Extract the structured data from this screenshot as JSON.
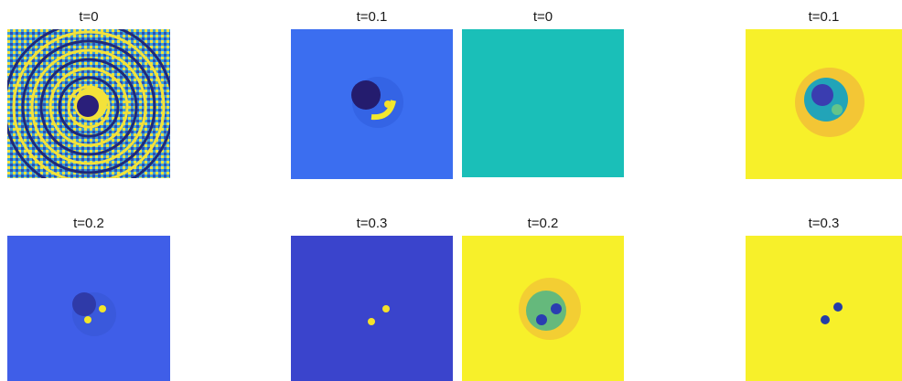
{
  "panels": [
    {
      "title": "t=0",
      "render": "rings"
    },
    {
      "title": "t=0.1",
      "render": "blue-dark-core"
    },
    {
      "title": "t=0",
      "render": "flat-teal"
    },
    {
      "title": "t=0.1",
      "render": "yellow-blob"
    },
    {
      "title": "t=0.2",
      "render": "blue-dim-core"
    },
    {
      "title": "t=0.3",
      "render": "deep-blue-pair"
    },
    {
      "title": "t=0.2",
      "render": "yellow-green-pair"
    },
    {
      "title": "t=0.3",
      "render": "yellow-blue-pair"
    }
  ],
  "colors": {
    "teal": "#1abfb8",
    "blue": "#3b6ef0",
    "deep_blue": "#3a44cc",
    "yellow": "#f7f02a",
    "dark_blue": "#2a1f7a",
    "highlight_yellow": "#f5e12a"
  }
}
